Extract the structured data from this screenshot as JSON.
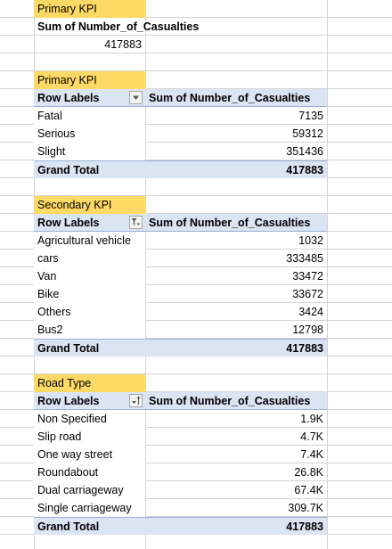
{
  "kpi_simple": {
    "title": "Primary KPI",
    "header": "Sum of Number_of_Casualties",
    "value": "417883"
  },
  "pivot_severity": {
    "title": "Primary KPI",
    "row_labels": "Row Labels",
    "value_header": "Sum of Number_of_Casualties",
    "filter_icon": "dropdown-arrow-icon",
    "rows": [
      {
        "label": "Fatal",
        "value": "7135"
      },
      {
        "label": "Serious",
        "value": "59312"
      },
      {
        "label": "Slight",
        "value": "351436"
      }
    ],
    "total_label": "Grand Total",
    "total_value": "417883"
  },
  "pivot_vehicle": {
    "title": "Secondary KPI",
    "row_labels": "Row Labels",
    "value_header": "Sum of Number_of_Casualties",
    "filter_icon": "filter-applied-icon",
    "rows": [
      {
        "label": "Agricultural vehicle",
        "value": "1032"
      },
      {
        "label": "cars",
        "value": "333485"
      },
      {
        "label": "Van",
        "value": "33472"
      },
      {
        "label": "Bike",
        "value": "33672"
      },
      {
        "label": "Others",
        "value": "3424"
      },
      {
        "label": "Bus2",
        "value": "12798"
      }
    ],
    "total_label": "Grand Total",
    "total_value": "417883"
  },
  "pivot_road": {
    "title": "Road Type",
    "row_labels": "Row Labels",
    "value_header": "Sum of Number_of_Casualties",
    "filter_icon": "sort-ascending-icon",
    "rows": [
      {
        "label": "Non Specified",
        "value": "1.9K"
      },
      {
        "label": "Slip road",
        "value": "4.7K"
      },
      {
        "label": "One way street",
        "value": "7.4K"
      },
      {
        "label": "Roundabout",
        "value": "26.8K"
      },
      {
        "label": "Dual carriageway",
        "value": "67.4K"
      },
      {
        "label": "Single carriageway",
        "value": "309.7K"
      }
    ],
    "total_label": "Grand Total",
    "total_value": "417883"
  },
  "colors": {
    "title_fill": "#ffd966",
    "header_fill": "#dbe4f3",
    "header_border": "#9bb0d6",
    "gridline": "#d4d4d4"
  }
}
